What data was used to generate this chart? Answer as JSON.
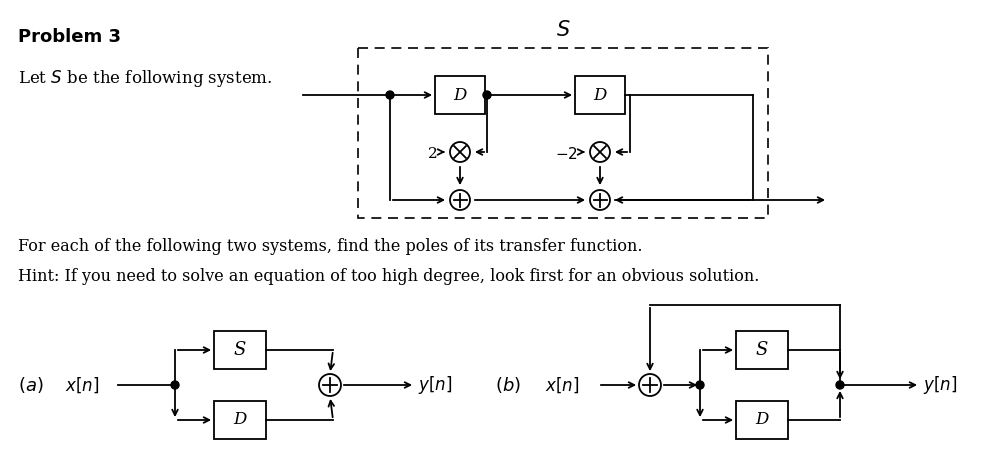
{
  "bg_color": "#ffffff",
  "title_text": "Problem 3",
  "let_s_text": "Let $S$ be the following system.",
  "for_each_text": "For each of the following two systems, find the poles of its transfer function.",
  "hint_text": "Hint: If you need to solve an equation of too high degree, look first for an obvious solution.",
  "fig_width": 9.81,
  "fig_height": 4.53,
  "dpi": 100
}
